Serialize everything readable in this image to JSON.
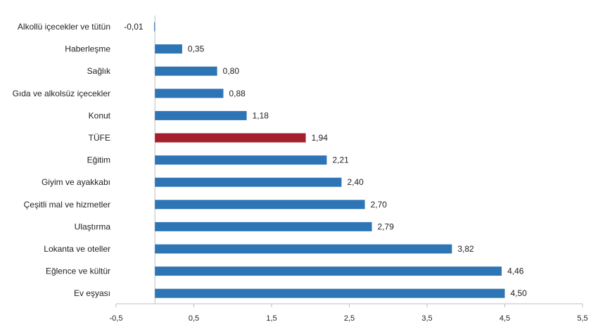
{
  "chart_data": {
    "type": "bar",
    "orientation": "horizontal",
    "categories": [
      "Alkollü içecekler ve tütün",
      "Haberleşme",
      "Sağlık",
      "Gıda ve alkolsüz içecekler",
      "Konut",
      "TÜFE",
      "Eğitim",
      "Giyim ve ayakkabı",
      "Çeşitli mal ve hizmetler",
      "Ulaştırma",
      "Lokanta ve oteller",
      "Eğlence ve kültür",
      "Ev eşyası"
    ],
    "values": [
      -0.01,
      0.35,
      0.8,
      0.88,
      1.18,
      1.94,
      2.21,
      2.4,
      2.7,
      2.79,
      3.82,
      4.46,
      4.5
    ],
    "value_labels": [
      "-0,01",
      "0,35",
      "0,80",
      "0,88",
      "1,18",
      "1,94",
      "2,21",
      "2,40",
      "2,70",
      "2,79",
      "3,82",
      "4,46",
      "4,50"
    ],
    "highlight_index": 5,
    "xlim": [
      -0.5,
      5.5
    ],
    "x_ticks": [
      -0.5,
      0.5,
      1.5,
      2.5,
      3.5,
      4.5,
      5.5
    ],
    "x_tick_labels": [
      "-0,5",
      "0,5",
      "1,5",
      "2,5",
      "3,5",
      "4,5",
      "5,5"
    ],
    "title": "",
    "xlabel": "",
    "ylabel": "",
    "grid": false,
    "colors": {
      "bar": "#2E75B6",
      "highlight": "#A5202A",
      "axis": "#BFBFBF"
    }
  }
}
